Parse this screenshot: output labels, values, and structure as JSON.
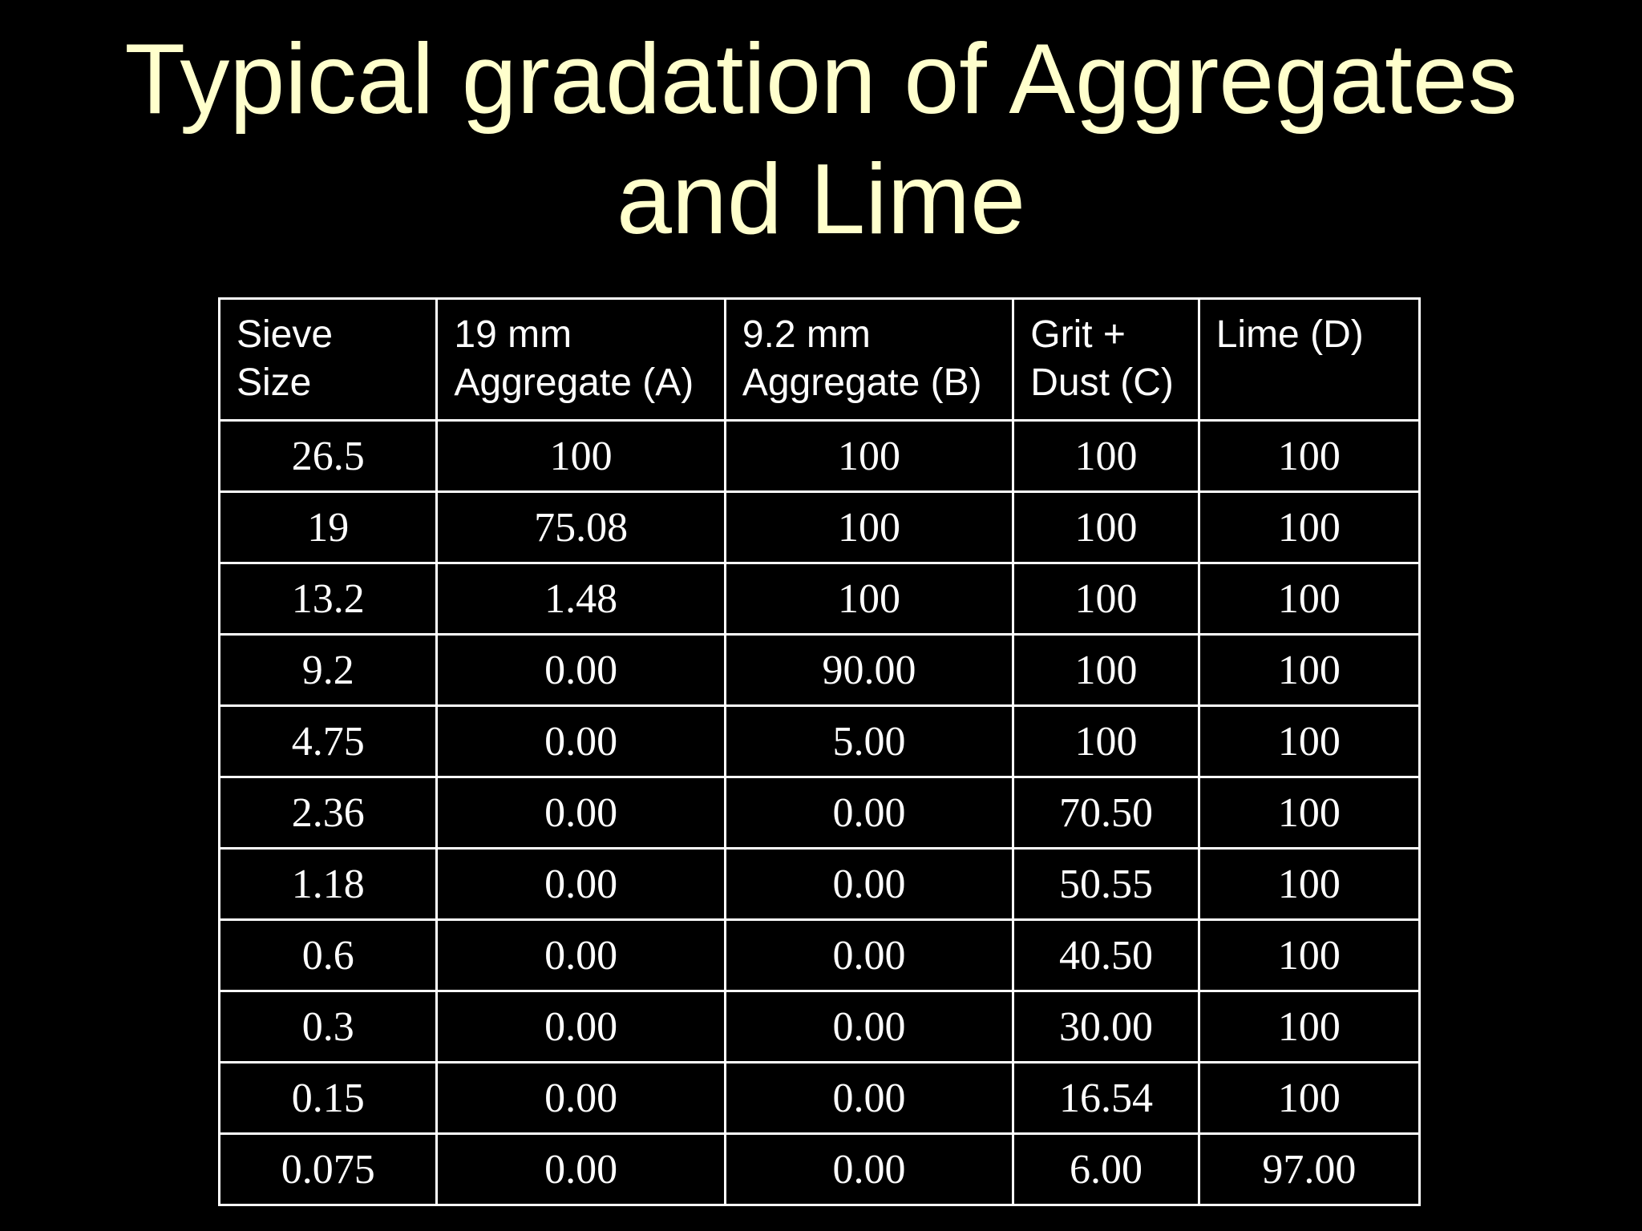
{
  "title": {
    "line1": "Typical gradation of Aggregates",
    "line2": "and Lime"
  },
  "colors": {
    "background": "#000000",
    "title": "#ffffcc",
    "table_text": "#ffffff",
    "table_border": "#ffffff"
  },
  "table": {
    "headers": [
      {
        "line1": "Sieve",
        "line2": "Size"
      },
      {
        "line1": "19 mm",
        "line2": "Aggregate (A)"
      },
      {
        "line1": "9.2 mm",
        "line2": "Aggregate (B)"
      },
      {
        "line1": "Grit +",
        "line2": "Dust (C)"
      },
      {
        "line1": "Lime (D)",
        "line2": ""
      }
    ],
    "rows": [
      [
        "26.5",
        "100",
        "100",
        "100",
        "100"
      ],
      [
        "19",
        "75.08",
        "100",
        "100",
        "100"
      ],
      [
        "13.2",
        "1.48",
        "100",
        "100",
        "100"
      ],
      [
        "9.2",
        "0.00",
        "90.00",
        "100",
        "100"
      ],
      [
        "4.75",
        "0.00",
        "5.00",
        "100",
        "100"
      ],
      [
        "2.36",
        "0.00",
        "0.00",
        "70.50",
        "100"
      ],
      [
        "1.18",
        "0.00",
        "0.00",
        "50.55",
        "100"
      ],
      [
        "0.6",
        "0.00",
        "0.00",
        "40.50",
        "100"
      ],
      [
        "0.3",
        "0.00",
        "0.00",
        "30.00",
        "100"
      ],
      [
        "0.15",
        "0.00",
        "0.00",
        "16.54",
        "100"
      ],
      [
        "0.075",
        "0.00",
        "0.00",
        "6.00",
        "97.00"
      ]
    ]
  }
}
